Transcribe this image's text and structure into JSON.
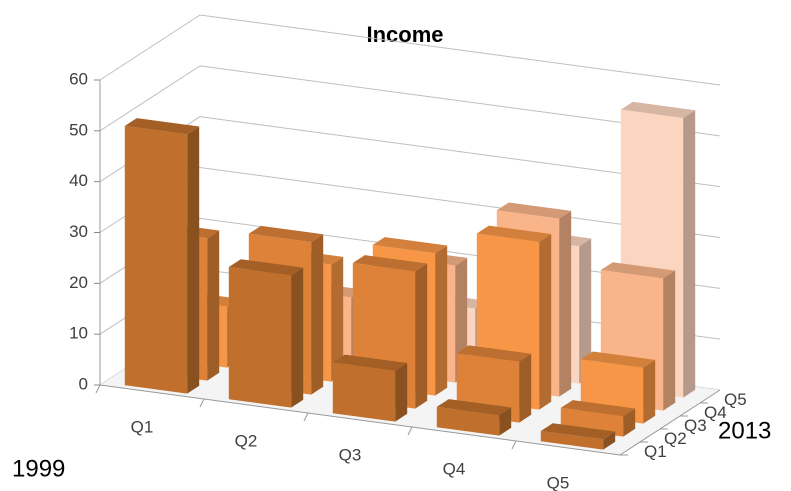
{
  "chart_data": {
    "type": "bar3d",
    "title": "Income",
    "x_label": "1999",
    "z_label": "2013",
    "categories": [
      "Q1",
      "Q2",
      "Q3",
      "Q4",
      "Q5"
    ],
    "series": [
      {
        "name": "Q1",
        "color": "#c0702c",
        "values": [
          51,
          26,
          10,
          4,
          2
        ]
      },
      {
        "name": "Q2",
        "color": "#dd8238",
        "values": [
          28,
          30,
          27,
          12,
          4
        ]
      },
      {
        "name": "Q3",
        "color": "#f79646",
        "values": [
          12,
          23,
          28,
          33,
          11
        ]
      },
      {
        "name": "Q4",
        "color": "#f9b48a",
        "values": [
          6,
          14,
          23,
          35,
          26
        ]
      },
      {
        "name": "Q5",
        "color": "#fcd5c0",
        "values": [
          3,
          7,
          12,
          27,
          55
        ]
      }
    ],
    "ylim": [
      0,
      60
    ],
    "yticks": [
      0,
      10,
      20,
      30,
      40,
      50,
      60
    ],
    "grid": true
  }
}
